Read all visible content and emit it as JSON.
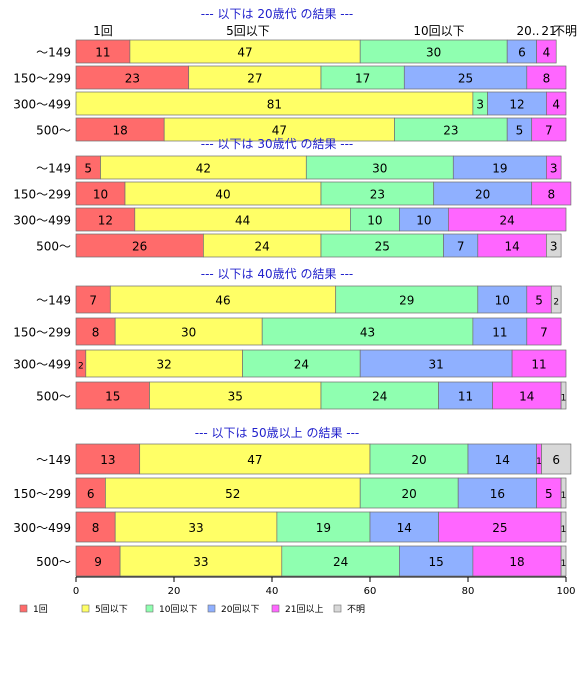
{
  "chart_data": {
    "type": "bar",
    "orientation": "horizontal",
    "stacked": true,
    "xlim": [
      0,
      100
    ],
    "x_ticks": [
      0,
      20,
      40,
      60,
      80,
      100
    ],
    "categories": [
      "～149",
      "150～299",
      "300～499",
      "500～"
    ],
    "top_labels": [
      "1回",
      "5回以下",
      "10回以下",
      "20..",
      "21",
      "不明"
    ],
    "series": [
      {
        "name": "1回",
        "color": "#ff6b6b"
      },
      {
        "name": "5回以下",
        "color": "#ffff66"
      },
      {
        "name": "10回以下",
        "color": "#8fffb0"
      },
      {
        "name": "20回以下",
        "color": "#8fb0ff"
      },
      {
        "name": "21回以上",
        "color": "#ff66ff"
      },
      {
        "name": "不明",
        "color": "#d8d8d8"
      }
    ],
    "groups": [
      {
        "title": "--- 以下は 20歳代 の結果 ---",
        "values": [
          [
            11,
            47,
            30,
            6,
            4,
            0
          ],
          [
            23,
            27,
            17,
            25,
            8,
            0
          ],
          [
            0,
            81,
            3,
            12,
            4,
            0
          ],
          [
            18,
            47,
            23,
            5,
            7,
            0
          ]
        ]
      },
      {
        "title": "--- 以下は 30歳代 の結果 ---",
        "values": [
          [
            5,
            42,
            30,
            19,
            3,
            0
          ],
          [
            10,
            40,
            23,
            20,
            8,
            0
          ],
          [
            12,
            44,
            10,
            10,
            24,
            0
          ],
          [
            26,
            24,
            25,
            7,
            14,
            3
          ]
        ]
      },
      {
        "title": "--- 以下は 40歳代 の結果 ---",
        "values": [
          [
            7,
            46,
            29,
            10,
            5,
            2
          ],
          [
            8,
            30,
            43,
            11,
            7,
            0
          ],
          [
            2,
            32,
            24,
            31,
            11,
            0
          ],
          [
            15,
            35,
            24,
            11,
            14,
            1
          ]
        ]
      },
      {
        "title": "--- 以下は 50歳以上 の結果 ---",
        "values": [
          [
            13,
            47,
            20,
            14,
            1,
            6
          ],
          [
            6,
            52,
            20,
            16,
            5,
            1
          ],
          [
            8,
            33,
            19,
            14,
            25,
            1
          ],
          [
            9,
            33,
            24,
            15,
            18,
            1
          ]
        ]
      }
    ]
  }
}
